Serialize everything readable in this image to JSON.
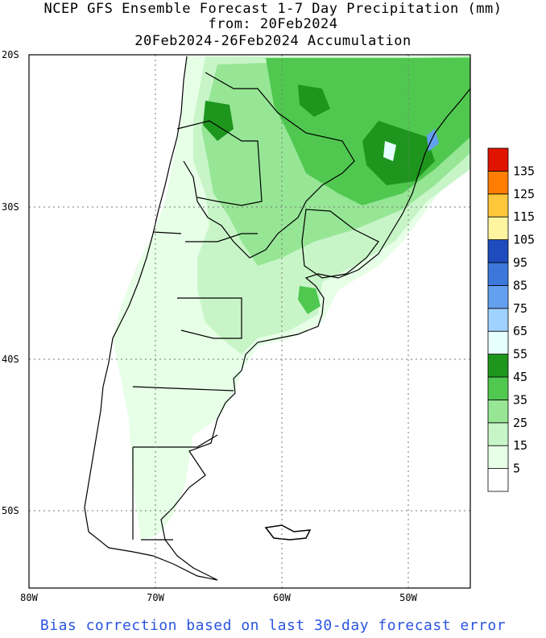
{
  "title": {
    "line1": "NCEP GFS Ensemble Forecast 1-7 Day Precipitation (mm)",
    "line2": "from: 20Feb2024",
    "line3": "20Feb2024-26Feb2024 Accumulation"
  },
  "footer": "Bias correction based on last 30-day forecast error",
  "map": {
    "lat_labels": [
      "20S",
      "30S",
      "40S",
      "50S"
    ],
    "lon_labels": [
      "80W",
      "70W",
      "60W",
      "50W"
    ]
  },
  "legend": {
    "levels": [
      "5",
      "15",
      "25",
      "35",
      "45",
      "55",
      "65",
      "75",
      "85",
      "95",
      "105",
      "115",
      "125",
      "135"
    ],
    "colors": [
      "#ffffff",
      "#e6ffe6",
      "#c8f5c8",
      "#96e696",
      "#50c850",
      "#1e961e",
      "#e6ffff",
      "#a0d2ff",
      "#64a0f0",
      "#3c78dc",
      "#1e4bbe",
      "#fff5a0",
      "#ffc83c",
      "#ff7d00",
      "#e11400"
    ]
  }
}
